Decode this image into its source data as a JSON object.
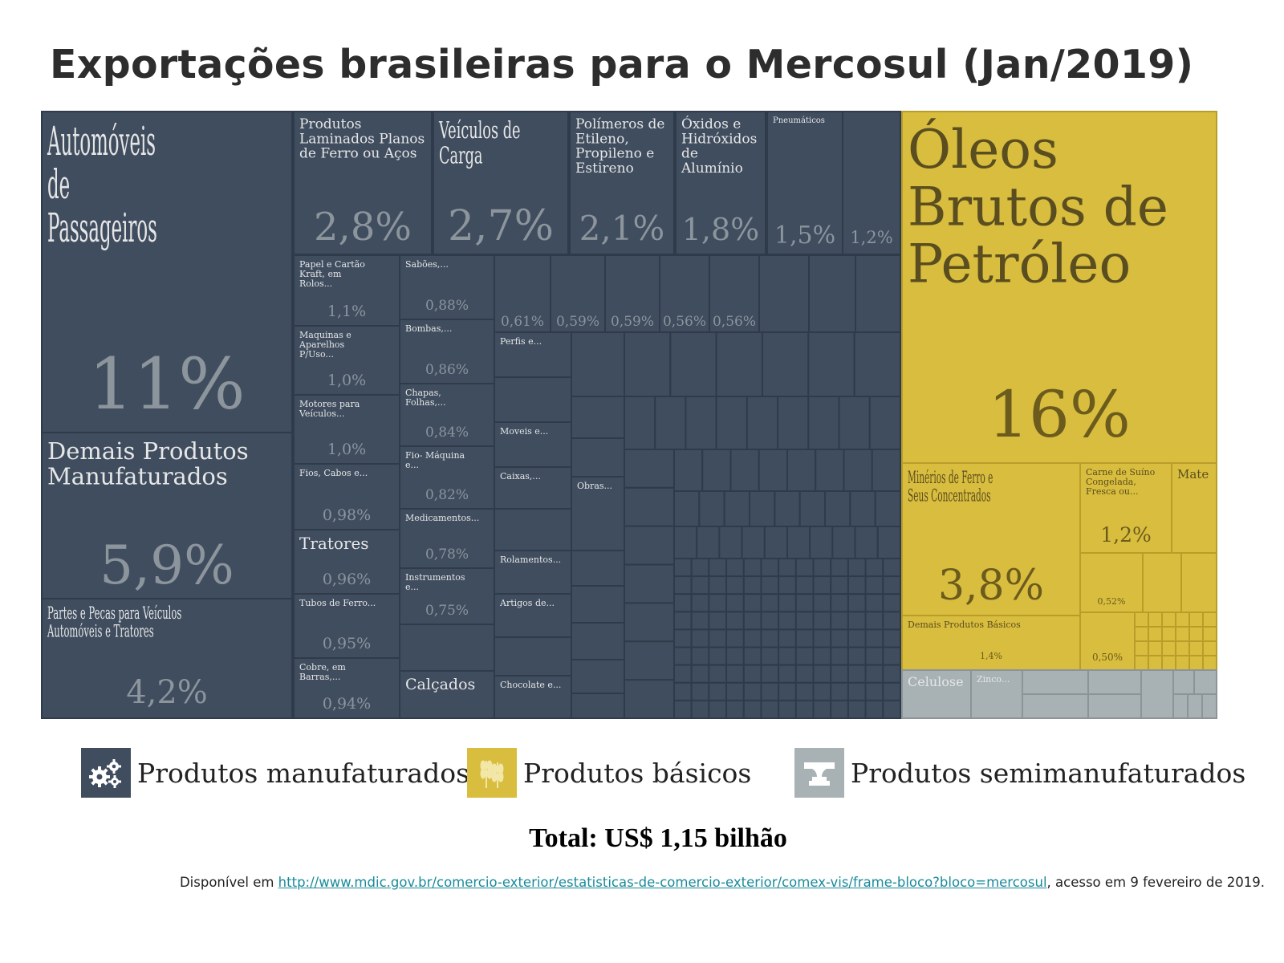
{
  "title": "Exportações brasileiras para o Mercosul (Jan/2019)",
  "colors": {
    "manufaturados": "#3f4d5f",
    "basicos": "#d9bd3e",
    "semimanufaturados": "#a8b2b5",
    "label_text_dark_bg": "#e6e6e6",
    "label_text_light_bg": "#5a4e20",
    "value_text_dark_bg": "#8c949c"
  },
  "legend": [
    {
      "label": "Produtos manufaturados",
      "icon": "gears-icon",
      "color": "#3f4d5f"
    },
    {
      "label": "Produtos básicos",
      "icon": "wheat-icon",
      "color": "#d9bd3e"
    },
    {
      "label": "Produtos semimanufaturados",
      "icon": "anvil-icon",
      "color": "#a8b2b5"
    }
  ],
  "total": "Total: US$ 1,15 bilhão",
  "source": {
    "prefix": "Disponível em ",
    "link": "http://www.mdic.gov.br/comercio-exterior/estatisticas-de-comercio-exterior/comex-vis/frame-bloco?bloco=mercosul",
    "suffix": ", acesso em 9 fevereiro de 2019."
  },
  "chart_data": {
    "type": "treemap",
    "title": "Exportações brasileiras para o Mercosul (Jan/2019)",
    "total": "US$ 1,15 bilhão",
    "groups": [
      {
        "name": "Produtos manufaturados",
        "items": [
          {
            "label": "Automóveis de Passageiros",
            "value": 11,
            "value_label": "11%"
          },
          {
            "label": "Demais Produtos Manufaturados",
            "value": 5.9,
            "value_label": "5,9%"
          },
          {
            "label": "Partes e Pecas para Veículos Automóveis e Tratores",
            "value": 4.2,
            "value_label": "4,2%"
          },
          {
            "label": "Produtos Laminados Planos de Ferro ou Aços",
            "value": 2.8,
            "value_label": "2,8%"
          },
          {
            "label": "Veículos de Carga",
            "value": 2.7,
            "value_label": "2,7%"
          },
          {
            "label": "Polímeros de Etileno, Propileno e Estireno",
            "value": 2.1,
            "value_label": "2,1%"
          },
          {
            "label": "Óxidos e Hidróxidos de Alumínio",
            "value": 1.8,
            "value_label": "1,8%"
          },
          {
            "label": "Pneumáticos",
            "value": 1.5,
            "value_label": "1,5%"
          },
          {
            "label": "",
            "value": 1.2,
            "value_label": "1,2%"
          },
          {
            "label": "Papel e Cartão Kraft, em Rolos...",
            "value": 1.1,
            "value_label": "1,1%"
          },
          {
            "label": "Maquinas e Aparelhos P/Uso...",
            "value": 1.0,
            "value_label": "1,0%"
          },
          {
            "label": "Motores para Veículos...",
            "value": 1.0,
            "value_label": "1,0%"
          },
          {
            "label": "Fios, Cabos e...",
            "value": 0.98,
            "value_label": "0,98%"
          },
          {
            "label": "Tratores",
            "value": 0.96,
            "value_label": "0,96%"
          },
          {
            "label": "Tubos de Ferro...",
            "value": 0.95,
            "value_label": "0,95%"
          },
          {
            "label": "Cobre, em Barras,...",
            "value": 0.94,
            "value_label": "0,94%"
          },
          {
            "label": "Sabões,...",
            "value": 0.88,
            "value_label": "0,88%"
          },
          {
            "label": "Bombas,...",
            "value": 0.86,
            "value_label": "0,86%"
          },
          {
            "label": "Chapas, Folhas,...",
            "value": 0.84,
            "value_label": "0,84%"
          },
          {
            "label": "Fio- Máquina e...",
            "value": 0.82,
            "value_label": "0,82%"
          },
          {
            "label": "Medicamentos...",
            "value": 0.78,
            "value_label": "0,78%"
          },
          {
            "label": "Instrumentos e...",
            "value": 0.75,
            "value_label": "0,75%"
          },
          {
            "label": "Calçados",
            "value": null,
            "value_label": ""
          },
          {
            "label": "",
            "value": 0.61,
            "value_label": "0,61%"
          },
          {
            "label": "",
            "value": 0.59,
            "value_label": "0,59%"
          },
          {
            "label": "",
            "value": 0.59,
            "value_label": "0,59%"
          },
          {
            "label": "",
            "value": 0.56,
            "value_label": "0,56%"
          },
          {
            "label": "",
            "value": 0.56,
            "value_label": "0,56%"
          },
          {
            "label": "Perfis e...",
            "value": null,
            "value_label": ""
          },
          {
            "label": "Moveis e...",
            "value": null,
            "value_label": ""
          },
          {
            "label": "Caixas,...",
            "value": null,
            "value_label": ""
          },
          {
            "label": "Rolamentos...",
            "value": null,
            "value_label": ""
          },
          {
            "label": "Artigos de...",
            "value": null,
            "value_label": ""
          },
          {
            "label": "Chocolate e...",
            "value": null,
            "value_label": ""
          },
          {
            "label": "Obras...",
            "value": null,
            "value_label": ""
          }
        ]
      },
      {
        "name": "Produtos básicos",
        "items": [
          {
            "label": "Óleos Brutos de Petróleo",
            "value": 16,
            "value_label": "16%"
          },
          {
            "label": "Minérios de Ferro e Seus Concentrados",
            "value": 3.8,
            "value_label": "3,8%"
          },
          {
            "label": "Carne de Suíno Congelada, Fresca ou...",
            "value": 1.2,
            "value_label": "1,2%"
          },
          {
            "label": "Mate",
            "value": null,
            "value_label": ""
          },
          {
            "label": "",
            "value": 0.52,
            "value_label": "0,52%"
          },
          {
            "label": "Demais Produtos Básicos",
            "value": 1.4,
            "value_label": "1,4%"
          },
          {
            "label": "",
            "value": 0.5,
            "value_label": "0,50%"
          }
        ]
      },
      {
        "name": "Produtos semimanufaturados",
        "items": [
          {
            "label": "Celulose",
            "value": null,
            "value_label": ""
          },
          {
            "label": "Zinco...",
            "value": null,
            "value_label": ""
          }
        ]
      }
    ]
  }
}
